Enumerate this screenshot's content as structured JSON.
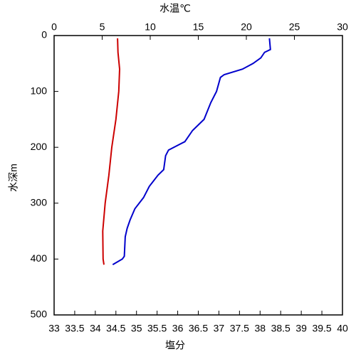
{
  "chart_data": {
    "type": "line",
    "ylabel": "水深m",
    "xlabel": "塩分",
    "x2label": "水温℃",
    "xlabel_color": "#cc0000",
    "x2label_color": "#0000cc",
    "ylim": [
      0,
      500
    ],
    "yticks": [
      0,
      100,
      200,
      300,
      400,
      500
    ],
    "y_inverted": true,
    "xlim": [
      33,
      40
    ],
    "xticks": [
      33,
      33.5,
      34,
      34.5,
      35,
      35.5,
      36,
      36.5,
      37,
      37.5,
      38,
      38.5,
      39,
      39.5,
      40
    ],
    "x2lim": [
      0,
      30
    ],
    "x2ticks": [
      0,
      5,
      10,
      15,
      20,
      25,
      30
    ],
    "series": [
      {
        "name": "水温",
        "color": "#0000cc",
        "axis": "x2",
        "depth": [
          5,
          25,
          30,
          40,
          50,
          60,
          70,
          75,
          100,
          120,
          150,
          170,
          190,
          205,
          215,
          240,
          250,
          270,
          290,
          310,
          330,
          345,
          360,
          395,
          400,
          410
        ],
        "values": [
          22.4,
          22.5,
          21.9,
          21.5,
          20.7,
          19.6,
          17.7,
          17.3,
          16.9,
          16.3,
          15.6,
          14.4,
          13.6,
          11.9,
          11.6,
          11.4,
          10.8,
          9.9,
          9.3,
          8.4,
          7.9,
          7.6,
          7.4,
          7.3,
          7.1,
          6.1
        ]
      },
      {
        "name": "塩分",
        "color": "#cc0000",
        "axis": "x",
        "depth": [
          5,
          30,
          60,
          100,
          150,
          200,
          250,
          300,
          350,
          400,
          410
        ],
        "values": [
          34.54,
          34.55,
          34.59,
          34.57,
          34.5,
          34.4,
          34.33,
          34.24,
          34.18,
          34.19,
          34.21
        ]
      }
    ]
  }
}
